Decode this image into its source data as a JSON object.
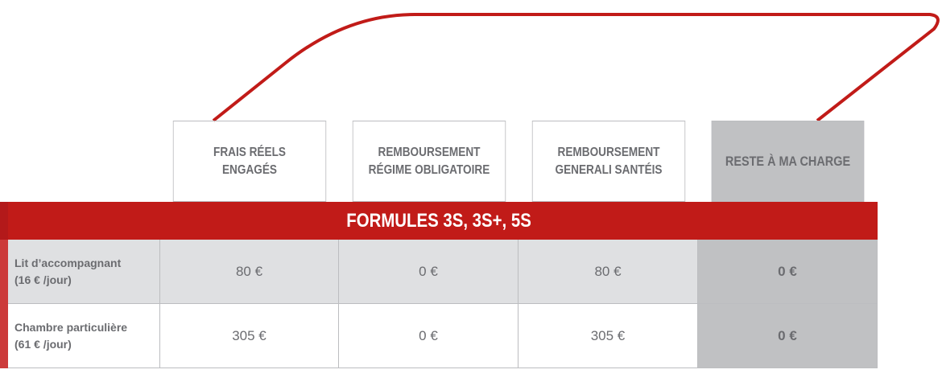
{
  "headers": [
    [
      "FRAIS RÉELS",
      "ENGAGÉS"
    ],
    [
      "REMBOURSEMENT",
      "RÉGIME OBLIGATOIRE"
    ],
    [
      "REMBOURSEMENT",
      "GENERALI SANTÉIS"
    ],
    [
      "RESTE À MA CHARGE"
    ]
  ],
  "band_title": "FORMULES 3S, 3S+, 5S",
  "rows": [
    {
      "label": [
        "Lit d’accompagnant",
        "(16 € /jour)"
      ],
      "values": [
        "80 €",
        "0 €",
        "80 €",
        "0 €"
      ]
    },
    {
      "label": [
        "Chambre particulière",
        "(61 € /jour)"
      ],
      "values": [
        "305 €",
        "0 €",
        "305 €",
        "0 €"
      ]
    }
  ],
  "colors": {
    "accent": "#c11b18",
    "text": "#6b6c70",
    "highlight_col": "#c0c1c3",
    "row_alt": "#dfe0e2"
  }
}
